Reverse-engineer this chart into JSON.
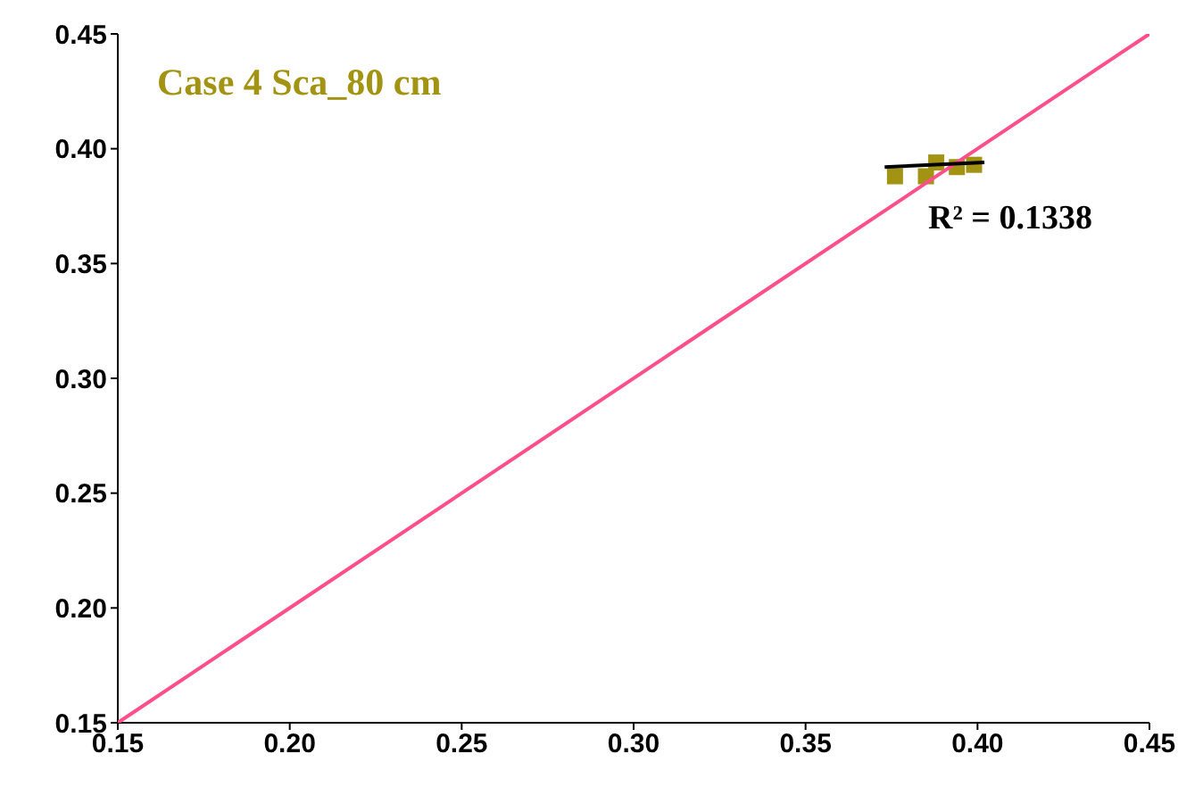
{
  "chart_data": {
    "type": "scatter",
    "title": "Case 4 Sca_80 cm",
    "annotations": [
      "R² = 0.1338"
    ],
    "xlim": [
      0.15,
      0.45
    ],
    "ylim": [
      0.15,
      0.45
    ],
    "xticks": [
      {
        "value": 0.15,
        "label": "0.15"
      },
      {
        "value": 0.2,
        "label": "0.20"
      },
      {
        "value": 0.25,
        "label": "0.25"
      },
      {
        "value": 0.3,
        "label": "0.30"
      },
      {
        "value": 0.35,
        "label": "0.35"
      },
      {
        "value": 0.4,
        "label": "0.40"
      },
      {
        "value": 0.45,
        "label": "0.45"
      }
    ],
    "yticks": [
      {
        "value": 0.15,
        "label": "0.15"
      },
      {
        "value": 0.2,
        "label": "0.20"
      },
      {
        "value": 0.25,
        "label": "0.25"
      },
      {
        "value": 0.3,
        "label": "0.30"
      },
      {
        "value": 0.35,
        "label": "0.35"
      },
      {
        "value": 0.4,
        "label": "0.40"
      },
      {
        "value": 0.45,
        "label": "0.45"
      }
    ],
    "series": [
      {
        "marker": "square",
        "color": "#a39313",
        "x": [
          0.376,
          0.385,
          0.388,
          0.394,
          0.399
        ],
        "values": [
          0.388,
          0.388,
          0.394,
          0.392,
          0.393
        ]
      },
      {
        "type": "line",
        "color": "#ff4f8b",
        "x": [
          0.15,
          0.45
        ],
        "values": [
          0.15,
          0.45
        ]
      },
      {
        "type": "line",
        "color": "#000000",
        "x": [
          0.373,
          0.402
        ],
        "values": [
          0.392,
          0.394
        ]
      }
    ]
  }
}
